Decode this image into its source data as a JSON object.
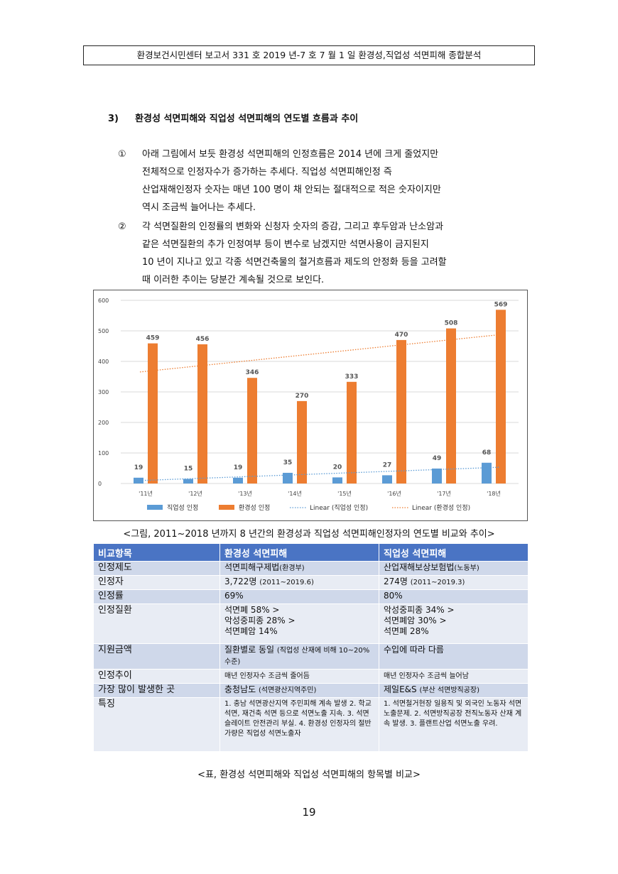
{
  "header": "환경보건시민센터 보고서 331 호 2019 년-7 호 7 월 1 일 환경성,직업성 석면피해 종합분석",
  "section": {
    "number": "3)",
    "title": "환경성 석면피해와 직업성 석면피해의 연도별 흐름과 추이"
  },
  "paragraphs": [
    {
      "mark": "①",
      "lines": [
        "아래 그림에서 보듯 환경성 석면피해의 인정흐름은 2014 년에 크게 줄었지만",
        "전체적으로 인정자수가 증가하는 추세다. 직업성 석면피해인정 즉",
        "산업재해인정자 숫자는 매년 100 명이 채 안되는 절대적으로 적은 숫자이지만",
        "역시 조금씩 늘어나는 추세다."
      ]
    },
    {
      "mark": "②",
      "lines": [
        "각 석면질환의 인정률의 변화와 신청자 숫자의 증감, 그리고 후두암과 난소암과",
        "같은 석면질환의 추가 인정여부 등이 변수로 남겠지만 석면사용이 금지된지",
        "10 년이 지나고 있고 각종 석면건축물의 철거흐름과 제도의 안정화 등을 고려할",
        "때 이러한 추이는 당분간 계속될 것으로 보인다."
      ]
    }
  ],
  "chart_data": {
    "type": "bar",
    "categories": [
      "'11년",
      "'12년",
      "'13년",
      "'14년",
      "'15년",
      "'16년",
      "'17년",
      "'18년"
    ],
    "series": [
      {
        "name": "직업성 인정",
        "values": [
          19,
          15,
          19,
          35,
          20,
          27,
          49,
          68
        ],
        "color": "#5b9bd5"
      },
      {
        "name": "환경성 인정",
        "values": [
          459,
          456,
          346,
          270,
          333,
          470,
          508,
          569
        ],
        "color": "#ed7d31"
      }
    ],
    "trendlines": [
      {
        "name": "Linear (직업성 인정)",
        "color": "#5b9bd5",
        "style": "dotted"
      },
      {
        "name": "Linear (환경성 인정)",
        "color": "#ed7d31",
        "style": "dotted"
      }
    ],
    "yticks": [
      0,
      100,
      200,
      300,
      400,
      500,
      600
    ],
    "ylim": [
      0,
      600
    ],
    "grid": true,
    "legend": "bottom"
  },
  "figure_caption": "<그림, 2011~2018 년까지 8 년간의 환경성과 직업성 석면피해인정자의 연도별 비교와 추이>",
  "table": {
    "headers": [
      "비교항목",
      "환경성 석면피해",
      "직업성 석면피해"
    ],
    "rows": [
      {
        "item": "인정제도",
        "env": [
          {
            "t": "석면피해구제법"
          },
          {
            "t": "(환경부)",
            "small": true
          }
        ],
        "occ": [
          {
            "t": "산업재해보상보험법"
          },
          {
            "t": "(노동부)",
            "small": true
          }
        ]
      },
      {
        "item": "인정자",
        "env": [
          {
            "t": "3,722명 "
          },
          {
            "t": "(2011~2019.6)",
            "small": true
          }
        ],
        "occ": [
          {
            "t": "274명 "
          },
          {
            "t": "(2011~2019.3)",
            "small": true
          }
        ]
      },
      {
        "item": "인정률",
        "env": [
          {
            "t": "69%"
          }
        ],
        "occ": [
          {
            "t": "80%"
          }
        ]
      },
      {
        "item": "인정질환",
        "env_lines": [
          "석면폐 58% >",
          "악성중피종 28% >",
          "석면폐암 14%"
        ],
        "occ_lines": [
          "악성중피종 34% >",
          "석면폐암 30% >",
          "석면폐 28%"
        ]
      },
      {
        "item": "지원금액",
        "env": [
          {
            "t": "질환별로 동일 "
          },
          {
            "t": "(직업성 산재에 비해 10~20%수준)",
            "small": true
          }
        ],
        "occ": [
          {
            "t": "수입에 따라 다름"
          }
        ]
      },
      {
        "item": "인정추이",
        "env": [
          {
            "t": "매년 인정자수 조금씩 줄어듬",
            "small": true
          }
        ],
        "occ": [
          {
            "t": "매년 인정자수 조금씩 늘어남",
            "small": true
          }
        ]
      },
      {
        "item": "가장 많이 발생한 곳",
        "env": [
          {
            "t": "충청남도 "
          },
          {
            "t": "(석면광산지역주민)",
            "small": true
          }
        ],
        "occ": [
          {
            "t": "제일E&S "
          },
          {
            "t": "(부산 석면방직공장)",
            "small": true
          }
        ]
      },
      {
        "item": "특징",
        "env": [
          {
            "t": "1. 충남 석면광산지역 주민피해 계속 발생 2. 학교석면, 재건축 석면 등으로 석면노출 지속. 3. 석면슬레이트 안전관리 부실. 4. 환경성 인정자의 절반가량은 직업성 석면노출자",
            "small": true
          }
        ],
        "occ": [
          {
            "t": "1. 석면철거현장 일용직 및 외국인 노동자 석면노출문제. 2. 석면방직공장 전직노동자 산재 계속 발생. 3. 플랜트산업 석면노출 우려.",
            "small": true
          }
        ]
      }
    ]
  },
  "table_caption": "<표, 환경성 석면피해와 직업성 석면피해의 항목별 비교>",
  "page_number": "19"
}
